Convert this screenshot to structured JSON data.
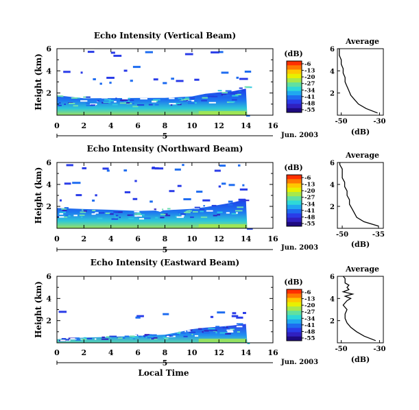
{
  "xaxis": {
    "ticks": [
      0,
      2,
      4,
      6,
      8,
      10,
      12,
      14,
      16
    ],
    "labels": [
      "0",
      "2",
      "4",
      "6",
      "8",
      "10",
      "12",
      "14",
      "16"
    ],
    "range": [
      0,
      16
    ],
    "date_label": "Jun. 2003",
    "day_label": "5",
    "xlabel": "Local Time"
  },
  "yaxis": {
    "label": "Height (km)",
    "ticks": [
      "2",
      "4",
      "6"
    ],
    "range": [
      0,
      6
    ]
  },
  "colorbar": {
    "title": "(dB)",
    "ticks": [
      "-6",
      "-13",
      "-20",
      "-27",
      "-34",
      "-41",
      "-48",
      "-55"
    ],
    "colors": [
      "#ff3000",
      "#ff7a00",
      "#ffc800",
      "#e8f000",
      "#a8e84a",
      "#62e0a0",
      "#2ed8d8",
      "#20a8f0",
      "#1e6cf0",
      "#2a3ce8",
      "#3020c0",
      "#1e0a80"
    ]
  },
  "chart_data": [
    {
      "type": "heatmap",
      "title": "Echo Intensity (Vertical Beam)",
      "x_range_hours": [
        0,
        14.1
      ],
      "ylim": [
        0,
        6
      ],
      "echo_layer_top_km": {
        "x": [
          0,
          2,
          4,
          6,
          8,
          10,
          11,
          12,
          13,
          14
        ],
        "y": [
          1.7,
          1.6,
          1.5,
          1.5,
          1.6,
          1.7,
          1.9,
          2.1,
          2.2,
          2.4
        ]
      },
      "sparse_echo_heights_km": [
        3.2,
        4.2,
        5.6
      ],
      "average_profile": {
        "title": "Average",
        "xlabel": "(dB)",
        "xticks": [
          "-50",
          "-30"
        ],
        "yticks": [
          "2",
          "4",
          "6"
        ],
        "xlim": [
          -52,
          -28
        ],
        "height_km": [
          0.2,
          0.6,
          1.0,
          1.4,
          1.8,
          2.2,
          2.6,
          3.0,
          3.4,
          3.8,
          4.2,
          4.6,
          5.0,
          5.4,
          5.8,
          6.0
        ],
        "db": [
          -31,
          -37,
          -41,
          -43,
          -45,
          -46,
          -47,
          -48,
          -48,
          -49,
          -49,
          -50,
          -50,
          -51,
          -51,
          -51
        ]
      }
    },
    {
      "type": "heatmap",
      "title": "Echo Intensity (Northward Beam)",
      "x_range_hours": [
        0,
        14.1
      ],
      "ylim": [
        0,
        6
      ],
      "echo_layer_top_km": {
        "x": [
          0,
          2,
          4,
          6,
          8,
          10,
          11,
          12,
          13,
          14
        ],
        "y": [
          1.8,
          1.7,
          1.6,
          1.6,
          1.7,
          1.8,
          2.0,
          2.2,
          2.4,
          2.6
        ]
      },
      "sparse_echo_heights_km": [
        2.6,
        3.4,
        4.2,
        5.6
      ],
      "average_profile": {
        "title": "Average",
        "xlabel": "(dB)",
        "xticks": [
          "-50",
          "-35"
        ],
        "yticks": [
          "2",
          "4",
          "6"
        ],
        "xlim": [
          -52,
          -33
        ],
        "height_km": [
          0.2,
          0.6,
          1.0,
          1.4,
          1.8,
          2.2,
          2.6,
          3.0,
          3.4,
          3.8,
          4.2,
          4.6,
          5.0,
          5.4,
          5.8,
          6.0
        ],
        "db": [
          -35,
          -41,
          -44,
          -45,
          -46,
          -47,
          -47,
          -48,
          -48,
          -49,
          -49,
          -50,
          -50,
          -50,
          -51,
          -51
        ]
      }
    },
    {
      "type": "heatmap",
      "title": "Echo Intensity (Eastward Beam)",
      "x_range_hours": [
        0,
        14.1
      ],
      "ylim": [
        0,
        6
      ],
      "echo_layer_top_km": {
        "x": [
          0,
          2,
          4,
          6,
          8,
          9,
          10,
          11,
          12,
          13,
          14
        ],
        "y": [
          0.4,
          0.5,
          0.6,
          0.7,
          0.8,
          1.0,
          1.2,
          1.4,
          1.5,
          1.6,
          1.7
        ]
      },
      "sparse_echo_heights_km": [
        2.6
      ],
      "average_profile": {
        "title": "Average",
        "xlabel": "(dB)",
        "xticks": [
          "-50",
          "-30"
        ],
        "yticks": [
          "2",
          "4",
          "6"
        ],
        "xlim": [
          -52,
          -28
        ],
        "height_km": [
          0.2,
          0.6,
          1.0,
          1.4,
          1.8,
          2.2,
          2.6,
          3.0,
          3.4,
          3.8,
          4.0,
          4.2,
          4.4,
          4.6,
          4.8,
          5.0,
          5.2,
          5.4,
          5.8,
          6.0
        ],
        "db": [
          -32,
          -38,
          -42,
          -45,
          -47,
          -48,
          -48,
          -47,
          -49,
          -47,
          -45,
          -48,
          -44,
          -49,
          -46,
          -47,
          -46,
          -48,
          -48,
          -49
        ]
      }
    }
  ]
}
